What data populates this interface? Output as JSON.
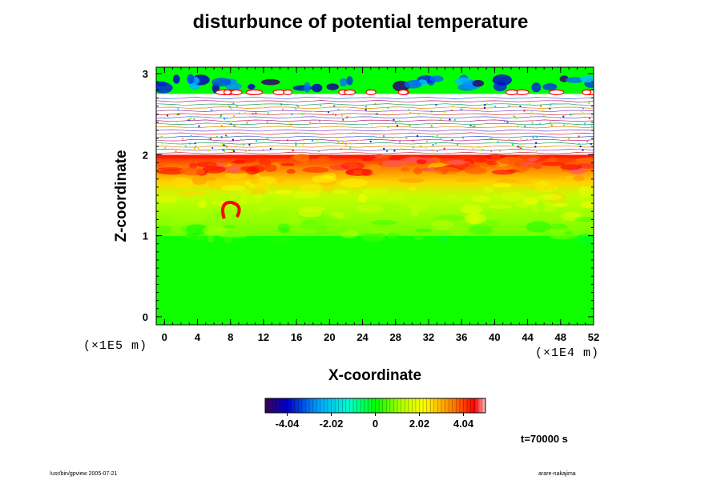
{
  "chart_data": {
    "type": "heatmap",
    "title": "disturbunce of potential temperature",
    "xlabel": "X-coordinate",
    "ylabel": "Z-coordinate",
    "x_unit": "(×1E4 m)",
    "y_unit": "(×1E5 m)",
    "xlim": [
      -1,
      52
    ],
    "ylim": [
      -0.1,
      3.08
    ],
    "x_ticks": [
      "0",
      "4",
      "8",
      "12",
      "16",
      "20",
      "24",
      "28",
      "32",
      "36",
      "40",
      "44",
      "48",
      "52"
    ],
    "y_ticks": [
      "0",
      "1",
      "2",
      "3"
    ],
    "colorbar": {
      "ticks": [
        "-4.04",
        "-2.02",
        "0",
        "2.02",
        "4.04"
      ],
      "range": [
        -5.05,
        5.05
      ]
    },
    "bands": [
      {
        "z_from": -0.1,
        "z_to": 1.0,
        "value": 0.1,
        "description": "near-neutral green"
      },
      {
        "z_from": 1.0,
        "z_to": 1.6,
        "value": 0.9,
        "description": "light yellow-green"
      },
      {
        "z_from": 1.6,
        "z_to": 1.95,
        "value": 2.8,
        "description": "yellow-orange"
      },
      {
        "z_from": 1.95,
        "z_to": 2.0,
        "value": 4.3,
        "description": "red"
      },
      {
        "z_from": 2.0,
        "z_to": 2.75,
        "value": null,
        "description": "out of range (white with contours)"
      },
      {
        "z_from": 2.75,
        "z_to": 3.08,
        "value": 0.0,
        "description": "green with blue/red cells"
      }
    ],
    "annotations": [
      {
        "x": 8,
        "z": 1.35,
        "value": 4.5,
        "description": "red curl"
      }
    ]
  },
  "labels": {
    "time": "t=70000 s",
    "footer_left": "/usr/bin/gpview 2005-07-21",
    "footer_right": "arare-nakajima"
  }
}
